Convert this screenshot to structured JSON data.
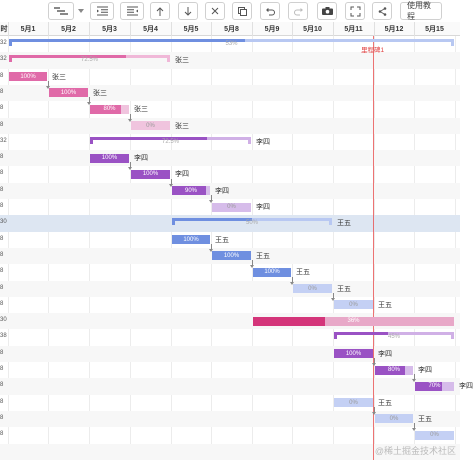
{
  "toolbar": {
    "buttons": [
      {
        "name": "indent-left-button",
        "icon": "outdent-icon"
      },
      {
        "name": "indent-right-button",
        "icon": "indent-icon"
      },
      {
        "name": "move-up-button",
        "icon": "arrow-up-icon"
      },
      {
        "name": "move-down-button",
        "icon": "arrow-down-icon"
      },
      {
        "name": "delete-button",
        "icon": "close-icon"
      },
      {
        "name": "copy-button",
        "icon": "copy-icon"
      },
      {
        "name": "undo-button",
        "icon": "undo-icon"
      },
      {
        "name": "redo-button",
        "icon": "redo-icon"
      },
      {
        "name": "screenshot-button",
        "icon": "camera-icon"
      },
      {
        "name": "fullscreen-button",
        "icon": "expand-icon"
      },
      {
        "name": "share-button",
        "icon": "share-icon"
      }
    ],
    "tutorial_label": "使用教程"
  },
  "left_column": {
    "header_label": "时"
  },
  "timeline": {
    "dates": [
      "5月1",
      "5月2",
      "5月3",
      "5月4",
      "5月5",
      "5月8",
      "5月9",
      "5月10",
      "5月11",
      "5月12",
      "5月15"
    ]
  },
  "milestone": {
    "label": "里程碑1"
  },
  "rows": [
    {
      "left": "32",
      "kind": "summary",
      "color": "#6f8fe0",
      "light": "#b8c8f2",
      "progress": 0.53,
      "pct": "53%",
      "start": 0,
      "end": 11,
      "assignee": ""
    },
    {
      "left": "32",
      "kind": "summary",
      "color": "#e06aa8",
      "light": "#f0b8d8",
      "progress": 0.725,
      "pct": "72.5%",
      "start": 0,
      "end": 4,
      "assignee": "张三"
    },
    {
      "left": "8",
      "kind": "task",
      "color": "#e06aa8",
      "light": "#f0c4de",
      "progress": 1.0,
      "pct": "100%",
      "start": 0,
      "end": 1,
      "assignee": "张三"
    },
    {
      "left": "8",
      "kind": "task",
      "color": "#e06aa8",
      "light": "#f0c4de",
      "progress": 1.0,
      "pct": "100%",
      "start": 1,
      "end": 2,
      "assignee": "张三"
    },
    {
      "left": "8",
      "kind": "task",
      "color": "#e06aa8",
      "light": "#f0c4de",
      "progress": 0.8,
      "pct": "80%",
      "start": 2,
      "end": 3,
      "assignee": "张三"
    },
    {
      "left": "8",
      "kind": "task",
      "color": "#e06aa8",
      "light": "#f0c4de",
      "progress": 0,
      "pct": "0%",
      "start": 3,
      "end": 4,
      "assignee": "张三"
    },
    {
      "left": "32",
      "kind": "summary",
      "color": "#9a52c4",
      "light": "#d0b0e6",
      "progress": 0.725,
      "pct": "72.5%",
      "start": 2,
      "end": 6,
      "assignee": "李四"
    },
    {
      "left": "8",
      "kind": "task",
      "color": "#9a52c4",
      "light": "#d6bcea",
      "progress": 1.0,
      "pct": "100%",
      "start": 2,
      "end": 3,
      "assignee": "李四"
    },
    {
      "left": "8",
      "kind": "task",
      "color": "#9a52c4",
      "light": "#d6bcea",
      "progress": 1.0,
      "pct": "100%",
      "start": 3,
      "end": 4,
      "assignee": "李四"
    },
    {
      "left": "8",
      "kind": "task",
      "color": "#9a52c4",
      "light": "#d6bcea",
      "progress": 0.9,
      "pct": "90%",
      "start": 4,
      "end": 5,
      "assignee": "李四"
    },
    {
      "left": "8",
      "kind": "task",
      "color": "#9a52c4",
      "light": "#d6bcea",
      "progress": 0,
      "pct": "0%",
      "start": 5,
      "end": 6,
      "assignee": "李四"
    },
    {
      "left": "30",
      "kind": "summary",
      "color": "#6f8fe0",
      "light": "#b8c8f2",
      "progress": 0.5,
      "pct": "50%",
      "start": 4,
      "end": 8,
      "assignee": "王五",
      "selected": true
    },
    {
      "left": "8",
      "kind": "task",
      "color": "#6f8fe0",
      "light": "#c4d0f4",
      "progress": 1.0,
      "pct": "100%",
      "start": 4,
      "end": 5,
      "assignee": "王五"
    },
    {
      "left": "8",
      "kind": "task",
      "color": "#6f8fe0",
      "light": "#c4d0f4",
      "progress": 1.0,
      "pct": "100%",
      "start": 5,
      "end": 6,
      "assignee": "王五"
    },
    {
      "left": "8",
      "kind": "task",
      "color": "#6f8fe0",
      "light": "#c4d0f4",
      "progress": 1.0,
      "pct": "100%",
      "start": 6,
      "end": 7,
      "assignee": "王五"
    },
    {
      "left": "8",
      "kind": "task",
      "color": "#6f8fe0",
      "light": "#c4d0f4",
      "progress": 0,
      "pct": "0%",
      "start": 7,
      "end": 8,
      "assignee": "王五"
    },
    {
      "left": "8",
      "kind": "task",
      "color": "#6f8fe0",
      "light": "#c4d0f4",
      "progress": 0,
      "pct": "0%",
      "start": 8,
      "end": 9,
      "assignee": "王五"
    },
    {
      "left": "30",
      "kind": "task",
      "color": "#d4357a",
      "light": "#e8a8c8",
      "progress": 0.36,
      "pct": "36%",
      "start": 6,
      "end": 11,
      "assignee": ""
    },
    {
      "left": "38",
      "kind": "summary",
      "color": "#9a52c4",
      "light": "#d0b0e6",
      "progress": 0.45,
      "pct": "45%",
      "start": 8,
      "end": 11,
      "assignee": ""
    },
    {
      "left": "8",
      "kind": "task",
      "color": "#9a52c4",
      "light": "#d6bcea",
      "progress": 1.0,
      "pct": "100%",
      "start": 8,
      "end": 9,
      "assignee": "李四"
    },
    {
      "left": "8",
      "kind": "task",
      "color": "#9a52c4",
      "light": "#d6bcea",
      "progress": 0.8,
      "pct": "80%",
      "start": 9,
      "end": 10,
      "assignee": "李四"
    },
    {
      "left": "8",
      "kind": "task",
      "color": "#9a52c4",
      "light": "#d6bcea",
      "progress": 0.7,
      "pct": "70%",
      "start": 10,
      "end": 11,
      "assignee": "李四"
    },
    {
      "left": "8",
      "kind": "task",
      "color": "#6f8fe0",
      "light": "#c4d0f4",
      "progress": 0,
      "pct": "0%",
      "start": 8,
      "end": 9,
      "assignee": "王五"
    },
    {
      "left": "8",
      "kind": "task",
      "color": "#6f8fe0",
      "light": "#c4d0f4",
      "progress": 0,
      "pct": "0%",
      "start": 9,
      "end": 10,
      "assignee": "王五"
    },
    {
      "left": "8",
      "kind": "task",
      "color": "#6f8fe0",
      "light": "#c4d0f4",
      "progress": 0,
      "pct": "0%",
      "start": 10,
      "end": 11,
      "assignee": ""
    }
  ],
  "watermark": "@稀土掘金技术社区"
}
